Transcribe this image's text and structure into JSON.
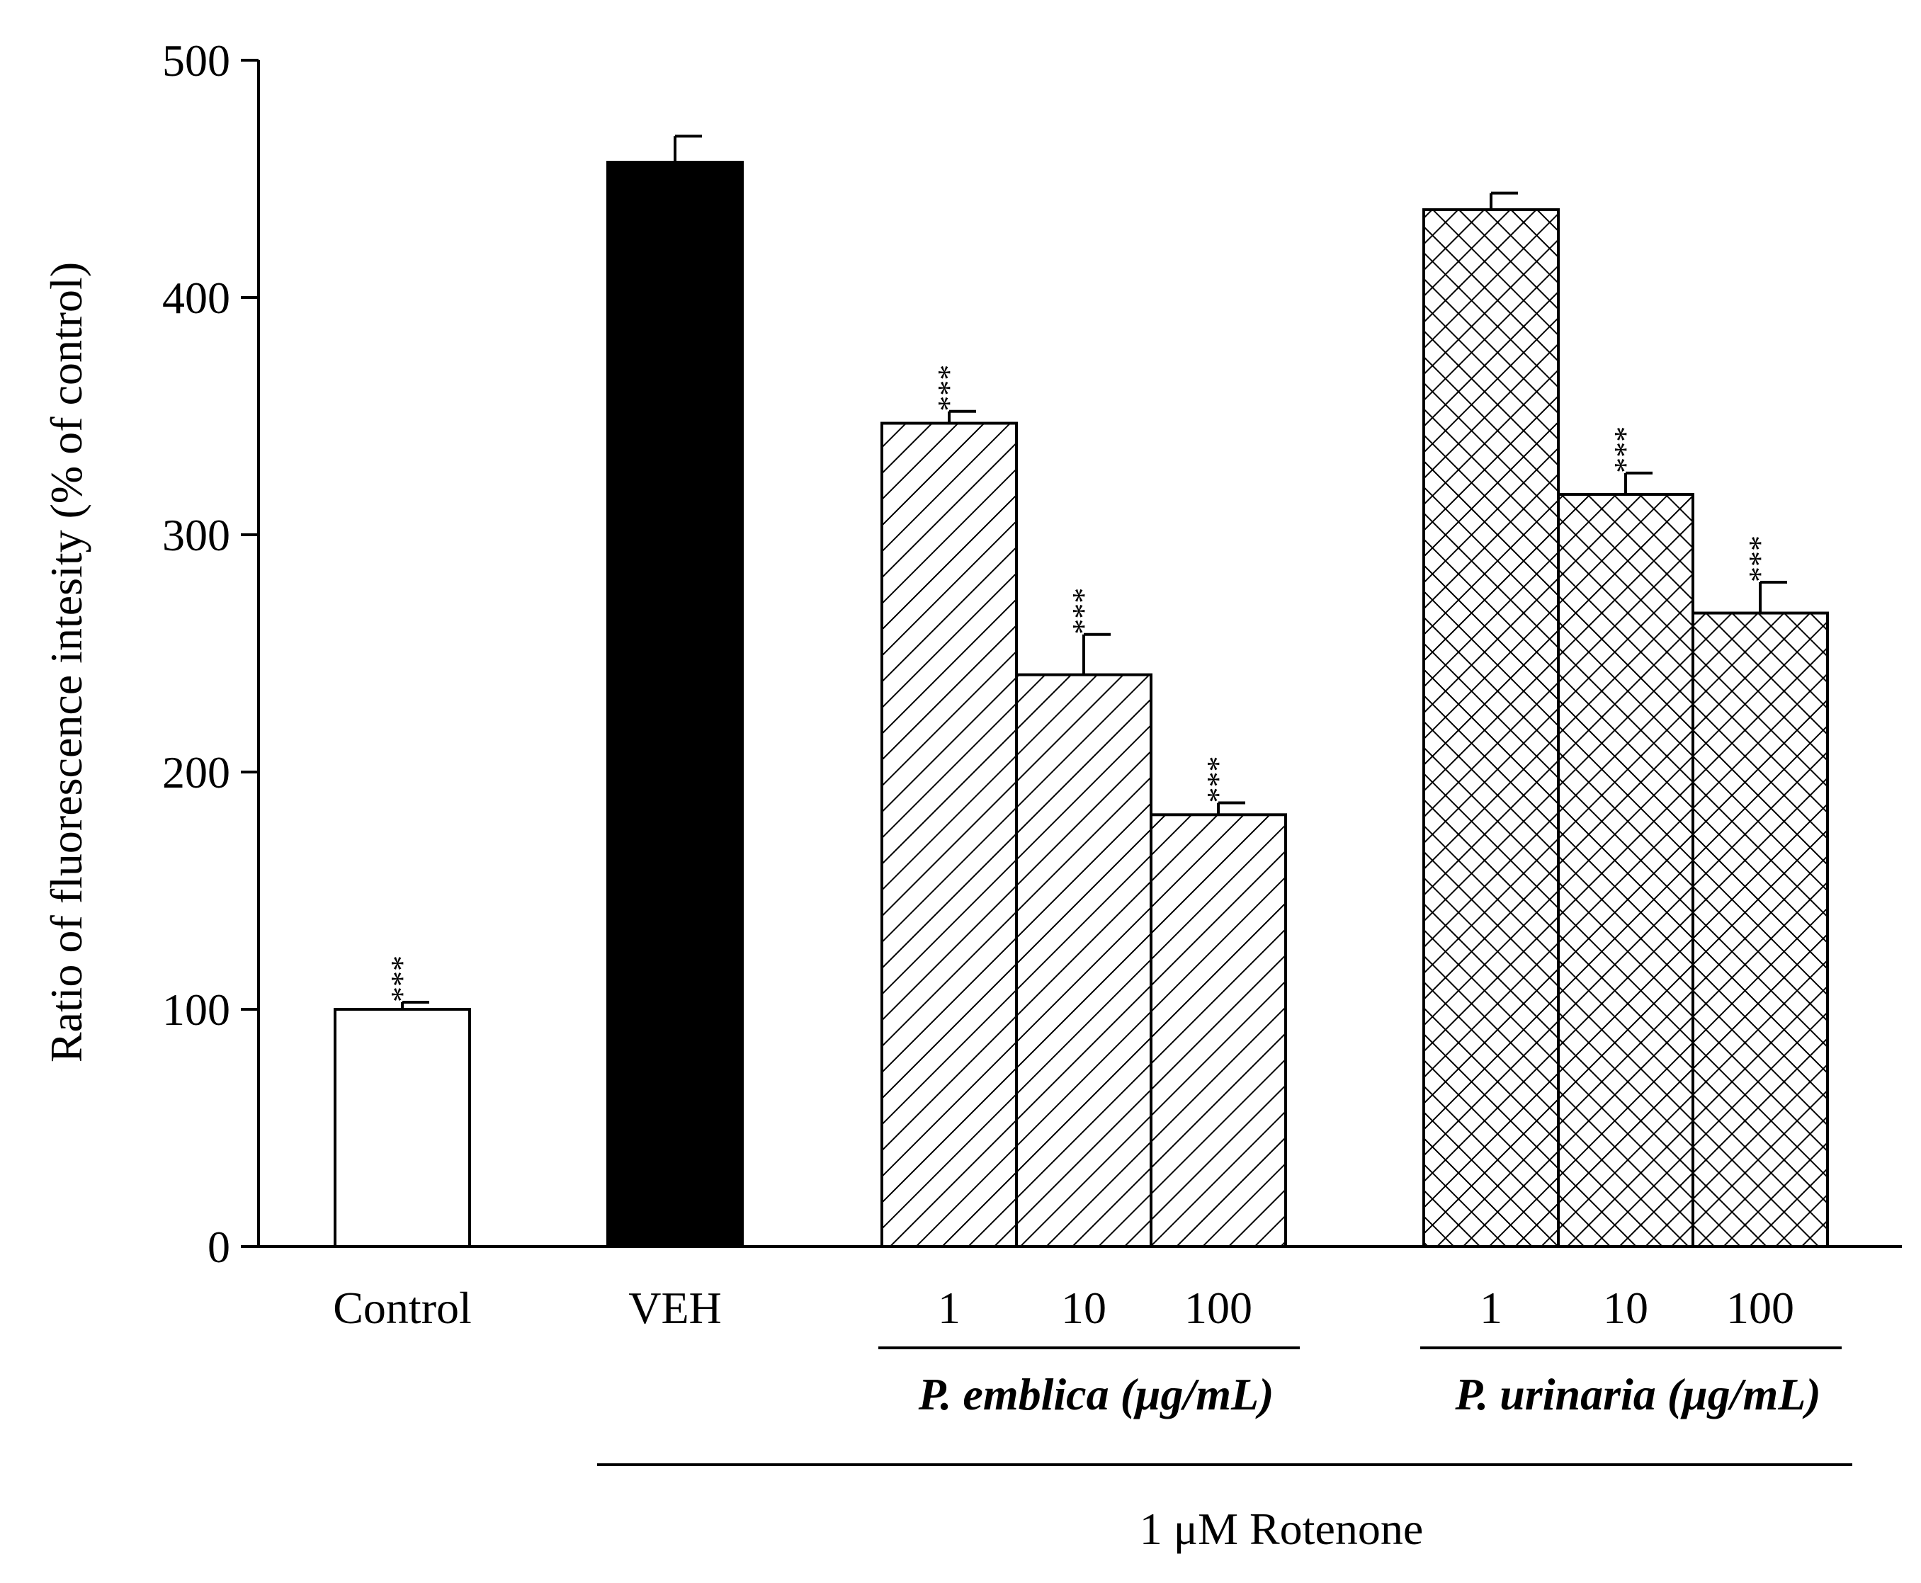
{
  "chart_data": {
    "type": "bar",
    "ylabel": "Ratio of fluorescence intesity (% of control)",
    "ylim": [
      0,
      500
    ],
    "yticks": [
      0,
      100,
      200,
      300,
      400,
      500
    ],
    "grid": false,
    "bars": [
      {
        "label": "Control",
        "value": 100,
        "error": 3,
        "significance": "***",
        "pattern": "white"
      },
      {
        "label": "VEH",
        "value": 457,
        "error": 11,
        "significance": "",
        "pattern": "black"
      },
      {
        "label": "1",
        "value": 347,
        "error": 5,
        "significance": "***",
        "pattern": "diagonal"
      },
      {
        "label": "10",
        "value": 241,
        "error": 17,
        "significance": "***",
        "pattern": "diagonal"
      },
      {
        "label": "100",
        "value": 182,
        "error": 5,
        "significance": "***",
        "pattern": "diagonal"
      },
      {
        "label": "1",
        "value": 437,
        "error": 7,
        "significance": "",
        "pattern": "crosshatch"
      },
      {
        "label": "10",
        "value": 317,
        "error": 9,
        "significance": "***",
        "pattern": "crosshatch"
      },
      {
        "label": "100",
        "value": 267,
        "error": 13,
        "significance": "***",
        "pattern": "crosshatch"
      }
    ],
    "groups": [
      {
        "label": "P. emblica (μg/mL)",
        "bars": [
          2,
          4
        ]
      },
      {
        "label": "P. urinaria (μg/mL)",
        "bars": [
          5,
          7
        ]
      }
    ],
    "treatment": {
      "label": "1 μM Rotenone",
      "bars": [
        1,
        7
      ]
    }
  }
}
